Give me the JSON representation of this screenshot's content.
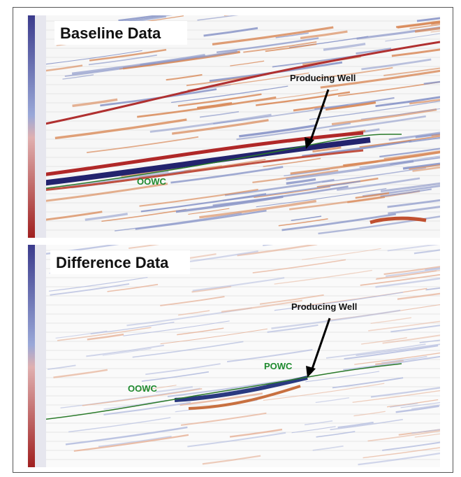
{
  "panels": [
    {
      "title": "Baseline Data",
      "well_label": "Producing Well",
      "oowc_label": "OOWC"
    },
    {
      "title": "Difference Data",
      "well_label": "Producing Well",
      "powc_label": "POWC",
      "oowc_label": "OOWC"
    }
  ]
}
